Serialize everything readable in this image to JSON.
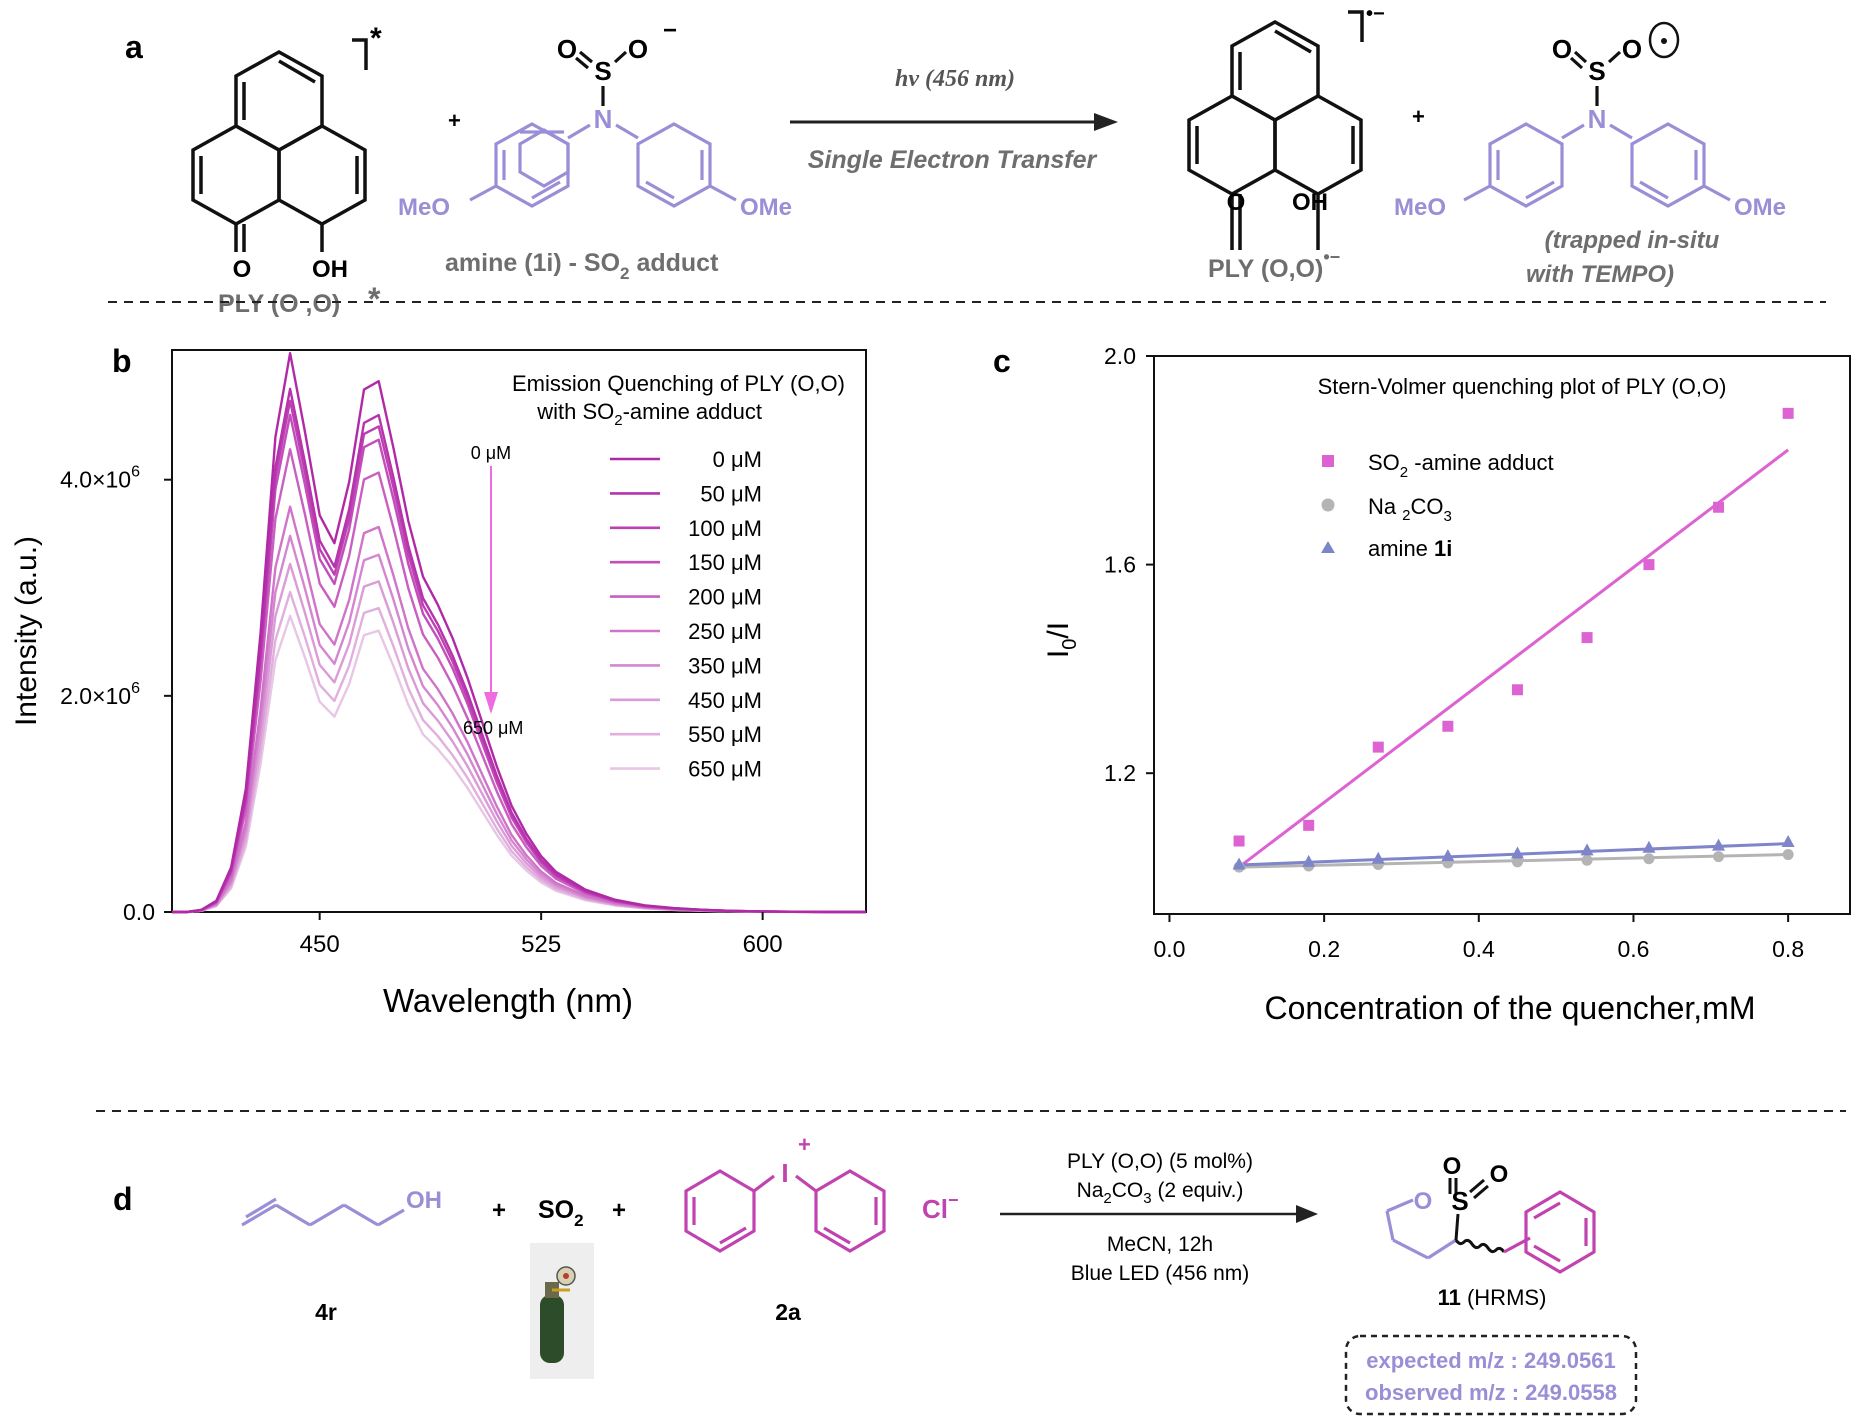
{
  "colors": {
    "purple_mol": "#9b8ed6",
    "magenta_mol": "#c043b0",
    "grey_text": "#6e6e6e",
    "sv_adduct": "#dd63d2",
    "sv_na2co3": "#b4b4b4",
    "sv_amine": "#7f85c9",
    "arrow_pink": "#ee6be0"
  },
  "panel_a": {
    "label": "a",
    "ply_star_label": "PLY (O ,O)",
    "ply_star_mark": "*",
    "ply_O": "O",
    "ply_OH": "OH",
    "excited_star": "*",
    "plus1": "+",
    "adduct_S": "S",
    "adduct_O1": "O",
    "adduct_O2": "O",
    "adduct_charge": "−",
    "adduct_N": "N",
    "adduct_MeO_left": "MeO",
    "adduct_OMe_right": "OMe",
    "adduct_label_pre": "amine (1i) - SO",
    "adduct_label_sub": "2",
    "adduct_label_post": " adduct",
    "arrow_top": "hν (456 nm)",
    "arrow_bottom": "Single Electron Transfer",
    "radical_anion_label": "PLY (O,O)",
    "radical_anion_mark": "•−",
    "plus2": "+",
    "radical_MeO": "MeO",
    "radical_OMe": "OMe",
    "trapped_line1": "(trapped in-situ",
    "trapped_line2": "with TEMPO)"
  },
  "panel_d": {
    "label": "d",
    "reactant1_OH": "OH",
    "reactant1_label": "4r",
    "plus_a": "+",
    "so2_pre": "SO",
    "so2_sub": "2",
    "plus_b": "+",
    "iodonium_I": "I",
    "iodonium_plus": "+",
    "iodonium_Cl": "Cl",
    "iodonium_minus": "−",
    "reagent2_label": "2a",
    "cond1": "PLY (O,O) (5 mol%)",
    "cond2_pre": "Na",
    "cond2_sub1": "2",
    "cond2_mid": "CO",
    "cond2_sub2": "3",
    "cond2_post": " (2 equiv.)",
    "cond3": "MeCN, 12h",
    "cond4": "Blue LED (456 nm)",
    "product_S": "S",
    "product_O1": "O",
    "product_O2": "O",
    "product_O3": "O",
    "product_label_bold": "11",
    "product_label_rest": " (HRMS)",
    "expected": "expected m/z : 249.0561",
    "observed": "observed m/z : 249.0558"
  },
  "chart_data": [
    {
      "panel_label": "b",
      "type": "line",
      "title_line1": "Emission Quenching of PLY (O,O)",
      "title_line2_pre": "with SO",
      "title_line2_sub": "2",
      "title_line2_post": "-amine adduct",
      "xlabel": "Wavelength (nm)",
      "ylabel": "Intensity (a.u.)",
      "xlim": [
        400,
        635
      ],
      "ylim": [
        0,
        5200000
      ],
      "xticks": [
        450,
        525,
        600
      ],
      "yticks": [
        {
          "value": 0,
          "label": "0.0",
          "exp": ""
        },
        {
          "value": 2000000,
          "label": "2.0×10",
          "exp": "6"
        },
        {
          "value": 4000000,
          "label": "4.0×10",
          "exp": "6"
        }
      ],
      "arrow_top_label": "0 μM",
      "arrow_bottom_label": "650 μM",
      "legend": [
        "0  μM",
        "50  μM",
        "100  μM",
        "150  μM",
        "200  μM",
        "250  μM",
        "350  μM",
        "450  μM",
        "550  μM",
        "650  μM"
      ],
      "shape_x": [
        400,
        405,
        410,
        415,
        420,
        425,
        430,
        435,
        440,
        445,
        450,
        455,
        460,
        465,
        470,
        475,
        480,
        485,
        490,
        495,
        500,
        505,
        510,
        515,
        520,
        525,
        530,
        540,
        550,
        560,
        570,
        580,
        590,
        600,
        610,
        620,
        635
      ],
      "shape_y": [
        0.0,
        0.0,
        0.004,
        0.02,
        0.08,
        0.22,
        0.5,
        0.85,
        1.0,
        0.86,
        0.71,
        0.66,
        0.77,
        0.935,
        0.95,
        0.83,
        0.7,
        0.6,
        0.55,
        0.49,
        0.42,
        0.34,
        0.26,
        0.19,
        0.14,
        0.1,
        0.072,
        0.04,
        0.022,
        0.012,
        0.007,
        0.004,
        0.002,
        0.001,
        0.0005,
        0.0002,
        0.0
      ],
      "series": [
        {
          "peak_intensity": 5170000,
          "color": "#b02aa6"
        },
        {
          "peak_intensity": 4840000,
          "color": "#b733ad"
        },
        {
          "peak_intensity": 4730000,
          "color": "#bd40b3"
        },
        {
          "peak_intensity": 4600000,
          "color": "#c34dba"
        },
        {
          "peak_intensity": 4280000,
          "color": "#c85fc1"
        },
        {
          "peak_intensity": 3750000,
          "color": "#cf74c9"
        },
        {
          "peak_intensity": 3480000,
          "color": "#d487d0"
        },
        {
          "peak_intensity": 3220000,
          "color": "#da9bd7"
        },
        {
          "peak_intensity": 2960000,
          "color": "#e0afde"
        },
        {
          "peak_intensity": 2740000,
          "color": "#e7c6e6"
        }
      ]
    },
    {
      "panel_label": "c",
      "type": "scatter",
      "title": "Stern-Volmer quenching plot of PLY (O,O)",
      "xlabel": "Concentration of the quencher,mM",
      "ylabel_pre": "I",
      "ylabel_sub": "0",
      "ylabel_post": "/I",
      "xlim": [
        -0.02,
        0.88
      ],
      "ylim": [
        0.93,
        2.0
      ],
      "xticks": [
        0.0,
        0.2,
        0.4,
        0.6,
        0.8
      ],
      "yticks": [
        1.2,
        1.6,
        2.0
      ],
      "legend_position": "top-left",
      "series": [
        {
          "name_pre": "SO",
          "name_sub": "2",
          "name_post": " -amine adduct",
          "marker": "square",
          "color": "#dd63d2",
          "x": [
            0.09,
            0.18,
            0.27,
            0.36,
            0.45,
            0.54,
            0.62,
            0.71,
            0.8
          ],
          "y": [
            1.07,
            1.1,
            1.25,
            1.29,
            1.36,
            1.46,
            1.6,
            1.71,
            1.89
          ],
          "fit": [
            [
              0.09,
              1.02
            ],
            [
              0.8,
              1.82
            ]
          ]
        },
        {
          "name_pre": "Na",
          "name_sub": "2",
          "name_post": "CO",
          "name_sub2": "3",
          "marker": "circle",
          "color": "#b4b4b4",
          "x": [
            0.09,
            0.18,
            0.27,
            0.36,
            0.45,
            0.54,
            0.62,
            0.71,
            0.8
          ],
          "y": [
            1.02,
            1.022,
            1.025,
            1.028,
            1.03,
            1.033,
            1.036,
            1.04,
            1.044
          ],
          "fit": [
            [
              0.09,
              1.02
            ],
            [
              0.8,
              1.044
            ]
          ]
        },
        {
          "name_pre": "amine ",
          "name_bold": "1i",
          "marker": "triangle",
          "color": "#7f85c9",
          "x": [
            0.09,
            0.18,
            0.27,
            0.36,
            0.45,
            0.54,
            0.62,
            0.71,
            0.8
          ],
          "y": [
            1.025,
            1.03,
            1.036,
            1.041,
            1.046,
            1.052,
            1.057,
            1.061,
            1.068
          ],
          "fit": [
            [
              0.09,
              1.024
            ],
            [
              0.8,
              1.065
            ]
          ]
        }
      ]
    }
  ]
}
